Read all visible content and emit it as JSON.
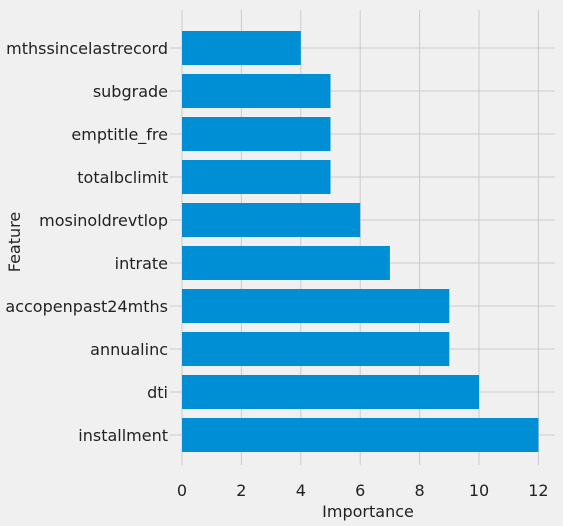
{
  "chart_data": {
    "type": "bar",
    "orientation": "horizontal",
    "categories": [
      "installment",
      "dti",
      "annualinc",
      "accopenpast24mths",
      "intrate",
      "mosinoldrevtlop",
      "totalbclimit",
      "emptitle_fre",
      "subgrade",
      "mthssincelastrecord"
    ],
    "values": [
      12,
      10,
      9,
      9,
      7,
      6,
      5,
      5,
      5,
      4
    ],
    "xlabel": "Importance",
    "ylabel": "Feature",
    "xlim": [
      0,
      12.6
    ],
    "xticks": [
      0,
      2,
      4,
      6,
      8,
      10,
      12
    ],
    "grid": true,
    "bar_color": "#008fd5",
    "background_color": "#f0f0f0",
    "grid_color": "#cbcbcb"
  }
}
